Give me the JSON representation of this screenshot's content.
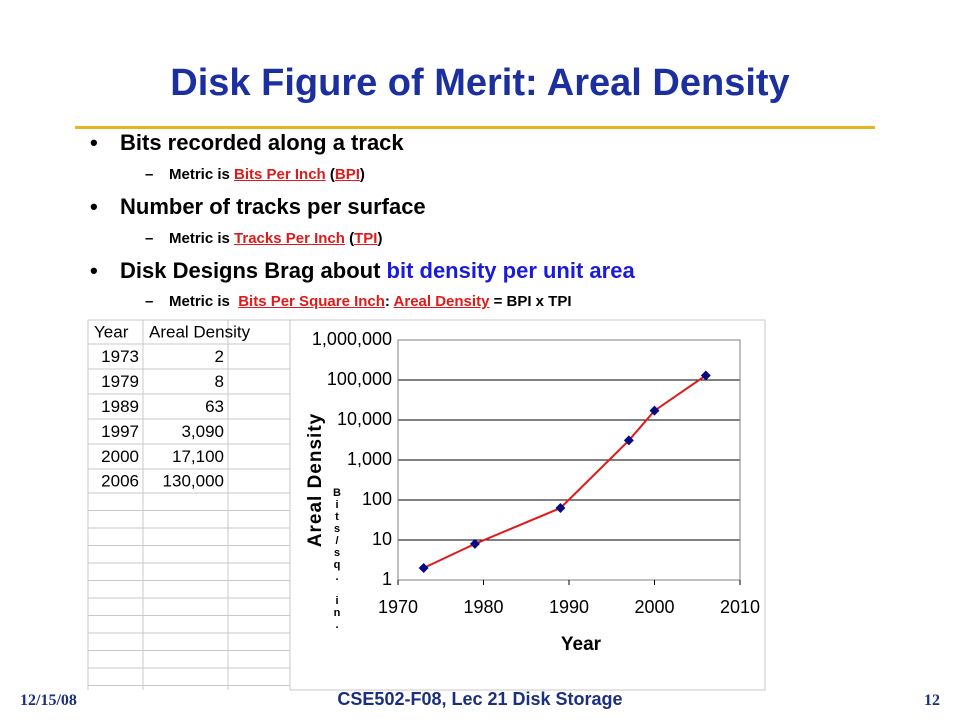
{
  "title": "Disk Figure of Merit: Areal Density",
  "bullets": [
    {
      "level": 1,
      "runs": [
        {
          "text": "Bits recorded along a track"
        }
      ]
    },
    {
      "level": 2,
      "runs": [
        {
          "text": "Metric is "
        },
        {
          "text": "Bits Per Inch",
          "style": "link"
        },
        {
          "text": " ("
        },
        {
          "text": "BPI",
          "style": "link"
        },
        {
          "text": ")"
        }
      ]
    },
    {
      "level": 1,
      "runs": [
        {
          "text": "Number of tracks per surface"
        }
      ]
    },
    {
      "level": 2,
      "runs": [
        {
          "text": "Metric is "
        },
        {
          "text": "Tracks Per Inch",
          "style": "link"
        },
        {
          "text": " ("
        },
        {
          "text": "TPI",
          "style": "link"
        },
        {
          "text": ")"
        }
      ]
    },
    {
      "level": 1,
      "runs": [
        {
          "text": "Disk Designs Brag about "
        },
        {
          "text": "bit density per unit area",
          "style": "blue"
        }
      ]
    },
    {
      "level": 2,
      "runs": [
        {
          "text": "Metric is  "
        },
        {
          "text": "Bits Per Square Inch",
          "style": "link"
        },
        {
          "text": ": "
        },
        {
          "text": "Areal Density",
          "style": "link"
        },
        {
          "text": " = BPI x TPI"
        }
      ]
    }
  ],
  "table": {
    "header": [
      "Year",
      "Areal Density"
    ],
    "rows": [
      [
        "1973",
        "2"
      ],
      [
        "1979",
        "8"
      ],
      [
        "1989",
        "63"
      ],
      [
        "1997",
        "3,090"
      ],
      [
        "2000",
        "17,100"
      ],
      [
        "2006",
        "130,000"
      ]
    ]
  },
  "chart_data": {
    "type": "line",
    "x": [
      1973,
      1979,
      1989,
      1997,
      2000,
      2006
    ],
    "values": [
      2,
      8,
      63,
      3090,
      17100,
      130000
    ],
    "color": "#e01a1a",
    "marker_color": "#0a0a80",
    "xlabel": "Year",
    "ylabel": "Areal Density",
    "annotation": "Bits/sq. in.",
    "xlim": [
      1970,
      2010
    ],
    "xticks": [
      1970,
      1980,
      1990,
      2000,
      2010
    ],
    "ylim": [
      1,
      1000000
    ],
    "log_y": true,
    "yticks": [
      1,
      10,
      100,
      {
        "value": 1000,
        "label": "1,000"
      },
      {
        "value": 10000,
        "label": "10,000"
      },
      {
        "value": 100000,
        "label": "100,000"
      },
      {
        "value": 1000000,
        "label": "1,000,000"
      }
    ],
    "grid": true
  },
  "footer": {
    "date": "12/15/08",
    "course": "CSE502-F08, Lec 21 Disk Storage",
    "page": "12"
  }
}
